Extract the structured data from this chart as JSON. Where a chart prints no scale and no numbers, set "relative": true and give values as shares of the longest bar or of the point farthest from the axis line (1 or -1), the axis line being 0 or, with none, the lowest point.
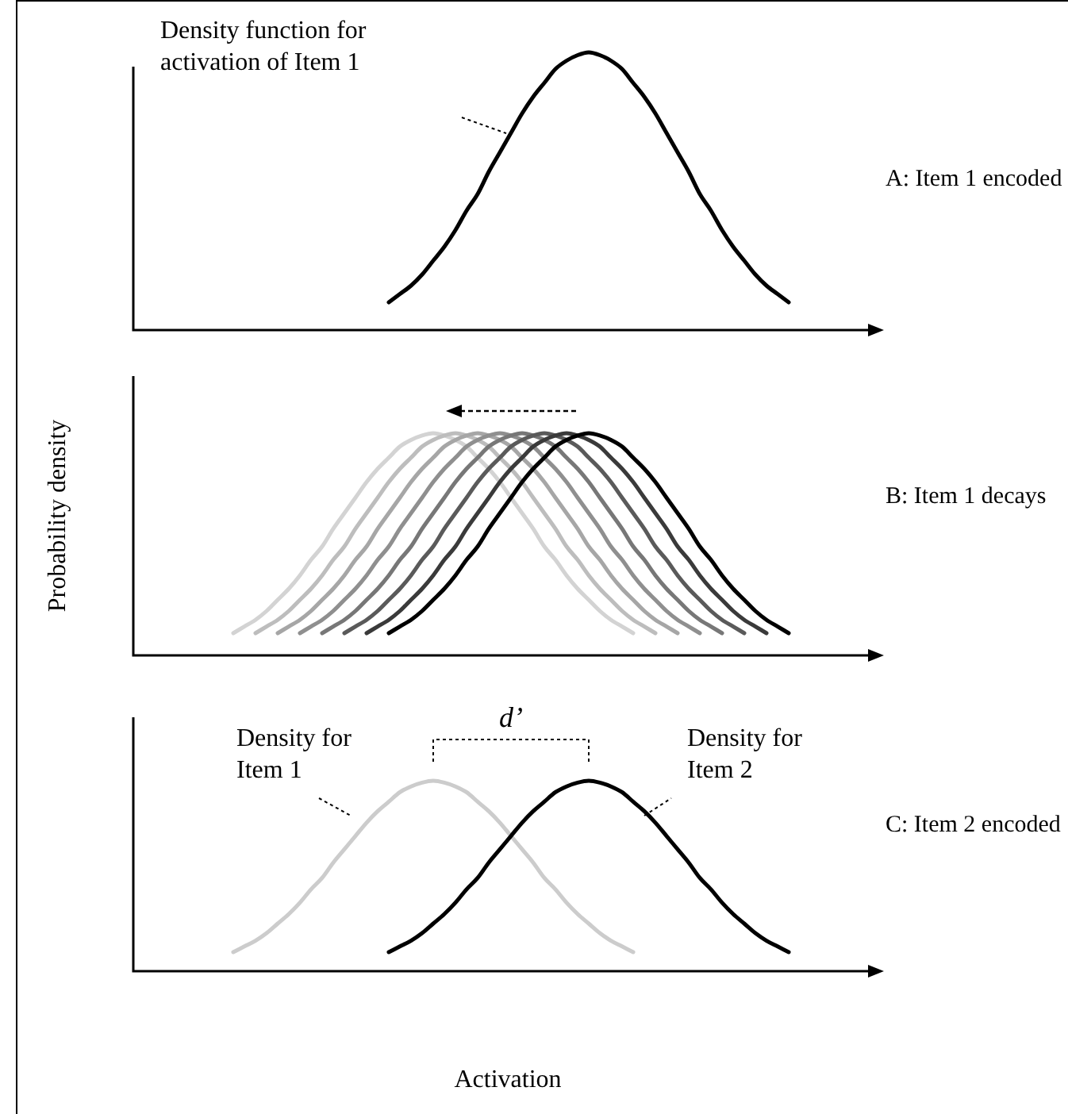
{
  "chart_data": [
    {
      "type": "line",
      "relative": true,
      "categories": [
        null,
        null,
        null,
        null,
        null,
        null,
        null,
        null,
        null,
        null,
        null,
        null,
        null,
        null,
        null,
        null,
        null,
        null,
        null,
        null,
        null,
        null,
        null,
        null,
        null,
        null,
        null,
        null,
        null,
        null,
        null,
        null,
        null,
        null,
        null,
        null,
        null,
        null,
        null,
        null,
        null,
        null,
        null,
        null,
        null,
        null,
        null,
        null,
        null,
        null,
        null,
        null,
        null,
        null,
        null,
        null,
        null,
        null,
        null,
        null,
        null,
        null,
        null,
        null,
        null,
        null,
        null
      ],
      "series": [
        {
          "color": "#000000",
          "values": [
            null,
            null,
            null,
            null,
            null,
            null,
            null,
            null,
            null,
            null,
            null,
            null,
            null,
            null,
            null,
            null,
            null,
            null,
            null,
            null,
            null,
            null,
            null,
            0.1,
            0.13,
            0.16,
            0.2,
            0.25,
            0.3,
            0.36,
            0.43,
            0.49,
            0.57,
            0.64,
            0.71,
            0.78,
            0.84,
            0.89,
            0.94,
            0.97,
            0.99,
            1.0,
            0.99,
            0.97,
            0.94,
            0.89,
            0.84,
            0.78,
            0.71,
            0.64,
            0.57,
            0.49,
            0.43,
            0.36,
            0.3,
            0.25,
            0.2,
            0.16,
            0.13,
            0.1,
            null,
            null,
            null,
            null,
            null,
            null,
            null
          ]
        }
      ],
      "annotations": [
        "Density function for activation of Item 1",
        "A: Item 1 encoded"
      ]
    },
    {
      "type": "line",
      "relative": true,
      "ylabel": "Probability density",
      "annotations": [
        "B: Item 1 decays"
      ],
      "categories": [
        null,
        null,
        null,
        null,
        null,
        null,
        null,
        null,
        null,
        null,
        null,
        null,
        null,
        null,
        null,
        null,
        null,
        null,
        null,
        null,
        null,
        null,
        null,
        null,
        null,
        null,
        null,
        null,
        null,
        null,
        null,
        null,
        null,
        null,
        null,
        null,
        null,
        null,
        null,
        null,
        null,
        null,
        null,
        null,
        null,
        null,
        null,
        null,
        null,
        null,
        null,
        null,
        null,
        null,
        null,
        null,
        null,
        null,
        null,
        null,
        null,
        null,
        null,
        null,
        null,
        null,
        null
      ],
      "series": [
        {
          "color": "#d3d3d3",
          "values": [
            null,
            null,
            null,
            null,
            null,
            null,
            null,
            null,
            null,
            0.1,
            0.13,
            0.16,
            0.2,
            0.25,
            0.3,
            0.36,
            0.43,
            0.49,
            0.57,
            0.64,
            0.71,
            0.78,
            0.84,
            0.89,
            0.94,
            0.97,
            0.99,
            1.0,
            0.99,
            0.97,
            0.94,
            0.89,
            0.84,
            0.78,
            0.71,
            0.64,
            0.57,
            0.49,
            0.43,
            0.36,
            0.3,
            0.25,
            0.2,
            0.16,
            0.13,
            0.1,
            null,
            null,
            null,
            null,
            null,
            null,
            null,
            null,
            null,
            null,
            null,
            null,
            null,
            null,
            null,
            null,
            null,
            null,
            null,
            null,
            null
          ]
        },
        {
          "color": "#bdbdbd",
          "values": [
            null,
            null,
            null,
            null,
            null,
            null,
            null,
            null,
            null,
            null,
            null,
            0.1,
            0.13,
            0.16,
            0.2,
            0.25,
            0.3,
            0.36,
            0.43,
            0.49,
            0.57,
            0.64,
            0.71,
            0.78,
            0.84,
            0.89,
            0.94,
            0.97,
            0.99,
            1.0,
            0.99,
            0.97,
            0.94,
            0.89,
            0.84,
            0.78,
            0.71,
            0.64,
            0.57,
            0.49,
            0.43,
            0.36,
            0.3,
            0.25,
            0.2,
            0.16,
            0.13,
            0.1,
            null,
            null,
            null,
            null,
            null,
            null,
            null,
            null,
            null,
            null,
            null,
            null,
            null,
            null,
            null,
            null,
            null,
            null,
            null
          ]
        },
        {
          "color": "#a6a6a6",
          "values": [
            null,
            null,
            null,
            null,
            null,
            null,
            null,
            null,
            null,
            null,
            null,
            null,
            null,
            0.1,
            0.13,
            0.16,
            0.2,
            0.25,
            0.3,
            0.36,
            0.43,
            0.49,
            0.57,
            0.64,
            0.71,
            0.78,
            0.84,
            0.89,
            0.94,
            0.97,
            0.99,
            1.0,
            0.99,
            0.97,
            0.94,
            0.89,
            0.84,
            0.78,
            0.71,
            0.64,
            0.57,
            0.49,
            0.43,
            0.36,
            0.3,
            0.25,
            0.2,
            0.16,
            0.13,
            0.1,
            null,
            null,
            null,
            null,
            null,
            null,
            null,
            null,
            null,
            null,
            null,
            null,
            null,
            null,
            null,
            null,
            null
          ]
        },
        {
          "color": "#8f8f8f",
          "values": [
            null,
            null,
            null,
            null,
            null,
            null,
            null,
            null,
            null,
            null,
            null,
            null,
            null,
            null,
            null,
            0.1,
            0.13,
            0.16,
            0.2,
            0.25,
            0.3,
            0.36,
            0.43,
            0.49,
            0.57,
            0.64,
            0.71,
            0.78,
            0.84,
            0.89,
            0.94,
            0.97,
            0.99,
            1.0,
            0.99,
            0.97,
            0.94,
            0.89,
            0.84,
            0.78,
            0.71,
            0.64,
            0.57,
            0.49,
            0.43,
            0.36,
            0.3,
            0.25,
            0.2,
            0.16,
            0.13,
            0.1,
            null,
            null,
            null,
            null,
            null,
            null,
            null,
            null,
            null,
            null,
            null,
            null,
            null,
            null,
            null
          ]
        },
        {
          "color": "#777777",
          "values": [
            null,
            null,
            null,
            null,
            null,
            null,
            null,
            null,
            null,
            null,
            null,
            null,
            null,
            null,
            null,
            null,
            null,
            0.1,
            0.13,
            0.16,
            0.2,
            0.25,
            0.3,
            0.36,
            0.43,
            0.49,
            0.57,
            0.64,
            0.71,
            0.78,
            0.84,
            0.89,
            0.94,
            0.97,
            0.99,
            1.0,
            0.99,
            0.97,
            0.94,
            0.89,
            0.84,
            0.78,
            0.71,
            0.64,
            0.57,
            0.49,
            0.43,
            0.36,
            0.3,
            0.25,
            0.2,
            0.16,
            0.13,
            0.1,
            null,
            null,
            null,
            null,
            null,
            null,
            null,
            null,
            null,
            null,
            null,
            null,
            null
          ]
        },
        {
          "color": "#5a5a5a",
          "values": [
            null,
            null,
            null,
            null,
            null,
            null,
            null,
            null,
            null,
            null,
            null,
            null,
            null,
            null,
            null,
            null,
            null,
            null,
            null,
            0.1,
            0.13,
            0.16,
            0.2,
            0.25,
            0.3,
            0.36,
            0.43,
            0.49,
            0.57,
            0.64,
            0.71,
            0.78,
            0.84,
            0.89,
            0.94,
            0.97,
            0.99,
            1.0,
            0.99,
            0.97,
            0.94,
            0.89,
            0.84,
            0.78,
            0.71,
            0.64,
            0.57,
            0.49,
            0.43,
            0.36,
            0.3,
            0.25,
            0.2,
            0.16,
            0.13,
            0.1,
            null,
            null,
            null,
            null,
            null,
            null,
            null,
            null,
            null,
            null,
            null
          ]
        },
        {
          "color": "#3a3a3a",
          "values": [
            null,
            null,
            null,
            null,
            null,
            null,
            null,
            null,
            null,
            null,
            null,
            null,
            null,
            null,
            null,
            null,
            null,
            null,
            null,
            null,
            null,
            0.1,
            0.13,
            0.16,
            0.2,
            0.25,
            0.3,
            0.36,
            0.43,
            0.49,
            0.57,
            0.64,
            0.71,
            0.78,
            0.84,
            0.89,
            0.94,
            0.97,
            0.99,
            1.0,
            0.99,
            0.97,
            0.94,
            0.89,
            0.84,
            0.78,
            0.71,
            0.64,
            0.57,
            0.49,
            0.43,
            0.36,
            0.3,
            0.25,
            0.2,
            0.16,
            0.13,
            0.1,
            null,
            null,
            null,
            null,
            null,
            null,
            null,
            null,
            null
          ]
        },
        {
          "color": "#000000",
          "values": [
            null,
            null,
            null,
            null,
            null,
            null,
            null,
            null,
            null,
            null,
            null,
            null,
            null,
            null,
            null,
            null,
            null,
            null,
            null,
            null,
            null,
            null,
            null,
            0.1,
            0.13,
            0.16,
            0.2,
            0.25,
            0.3,
            0.36,
            0.43,
            0.49,
            0.57,
            0.64,
            0.71,
            0.78,
            0.84,
            0.89,
            0.94,
            0.97,
            0.99,
            1.0,
            0.99,
            0.97,
            0.94,
            0.89,
            0.84,
            0.78,
            0.71,
            0.64,
            0.57,
            0.49,
            0.43,
            0.36,
            0.3,
            0.25,
            0.2,
            0.16,
            0.13,
            0.1,
            null,
            null,
            null,
            null,
            null,
            null,
            null
          ]
        }
      ]
    },
    {
      "type": "line",
      "relative": true,
      "xlabel": "Activation",
      "categories": [
        null,
        null,
        null,
        null,
        null,
        null,
        null,
        null,
        null,
        null,
        null,
        null,
        null,
        null,
        null,
        null,
        null,
        null,
        null,
        null,
        null,
        null,
        null,
        null,
        null,
        null,
        null,
        null,
        null,
        null,
        null,
        null,
        null,
        null,
        null,
        null,
        null,
        null,
        null,
        null,
        null,
        null,
        null,
        null,
        null,
        null,
        null,
        null,
        null,
        null,
        null,
        null,
        null,
        null,
        null,
        null,
        null,
        null,
        null,
        null,
        null,
        null,
        null,
        null,
        null,
        null,
        null
      ],
      "series": [
        {
          "color": "#cccccc",
          "values": [
            null,
            null,
            null,
            null,
            null,
            null,
            null,
            null,
            null,
            0.1,
            0.13,
            0.16,
            0.2,
            0.25,
            0.3,
            0.36,
            0.43,
            0.49,
            0.57,
            0.64,
            0.71,
            0.78,
            0.84,
            0.89,
            0.94,
            0.97,
            0.99,
            1.0,
            0.99,
            0.97,
            0.94,
            0.89,
            0.84,
            0.78,
            0.71,
            0.64,
            0.57,
            0.49,
            0.43,
            0.36,
            0.3,
            0.25,
            0.2,
            0.16,
            0.13,
            0.1,
            null,
            null,
            null,
            null,
            null,
            null,
            null,
            null,
            null,
            null,
            null,
            null,
            null,
            null,
            null,
            null,
            null,
            null,
            null,
            null,
            null
          ]
        },
        {
          "color": "#000000",
          "values": [
            null,
            null,
            null,
            null,
            null,
            null,
            null,
            null,
            null,
            null,
            null,
            null,
            null,
            null,
            null,
            null,
            null,
            null,
            null,
            null,
            null,
            null,
            null,
            0.1,
            0.13,
            0.16,
            0.2,
            0.25,
            0.3,
            0.36,
            0.43,
            0.49,
            0.57,
            0.64,
            0.71,
            0.78,
            0.84,
            0.89,
            0.94,
            0.97,
            0.99,
            1.0,
            0.99,
            0.97,
            0.94,
            0.89,
            0.84,
            0.78,
            0.71,
            0.64,
            0.57,
            0.49,
            0.43,
            0.36,
            0.3,
            0.25,
            0.2,
            0.16,
            0.13,
            0.1,
            null,
            null,
            null,
            null,
            null,
            null,
            null
          ]
        }
      ],
      "annotations": [
        "Density for Item 1",
        "Density for Item 2",
        "d’",
        "C: Item 2 encoded"
      ]
    }
  ]
}
